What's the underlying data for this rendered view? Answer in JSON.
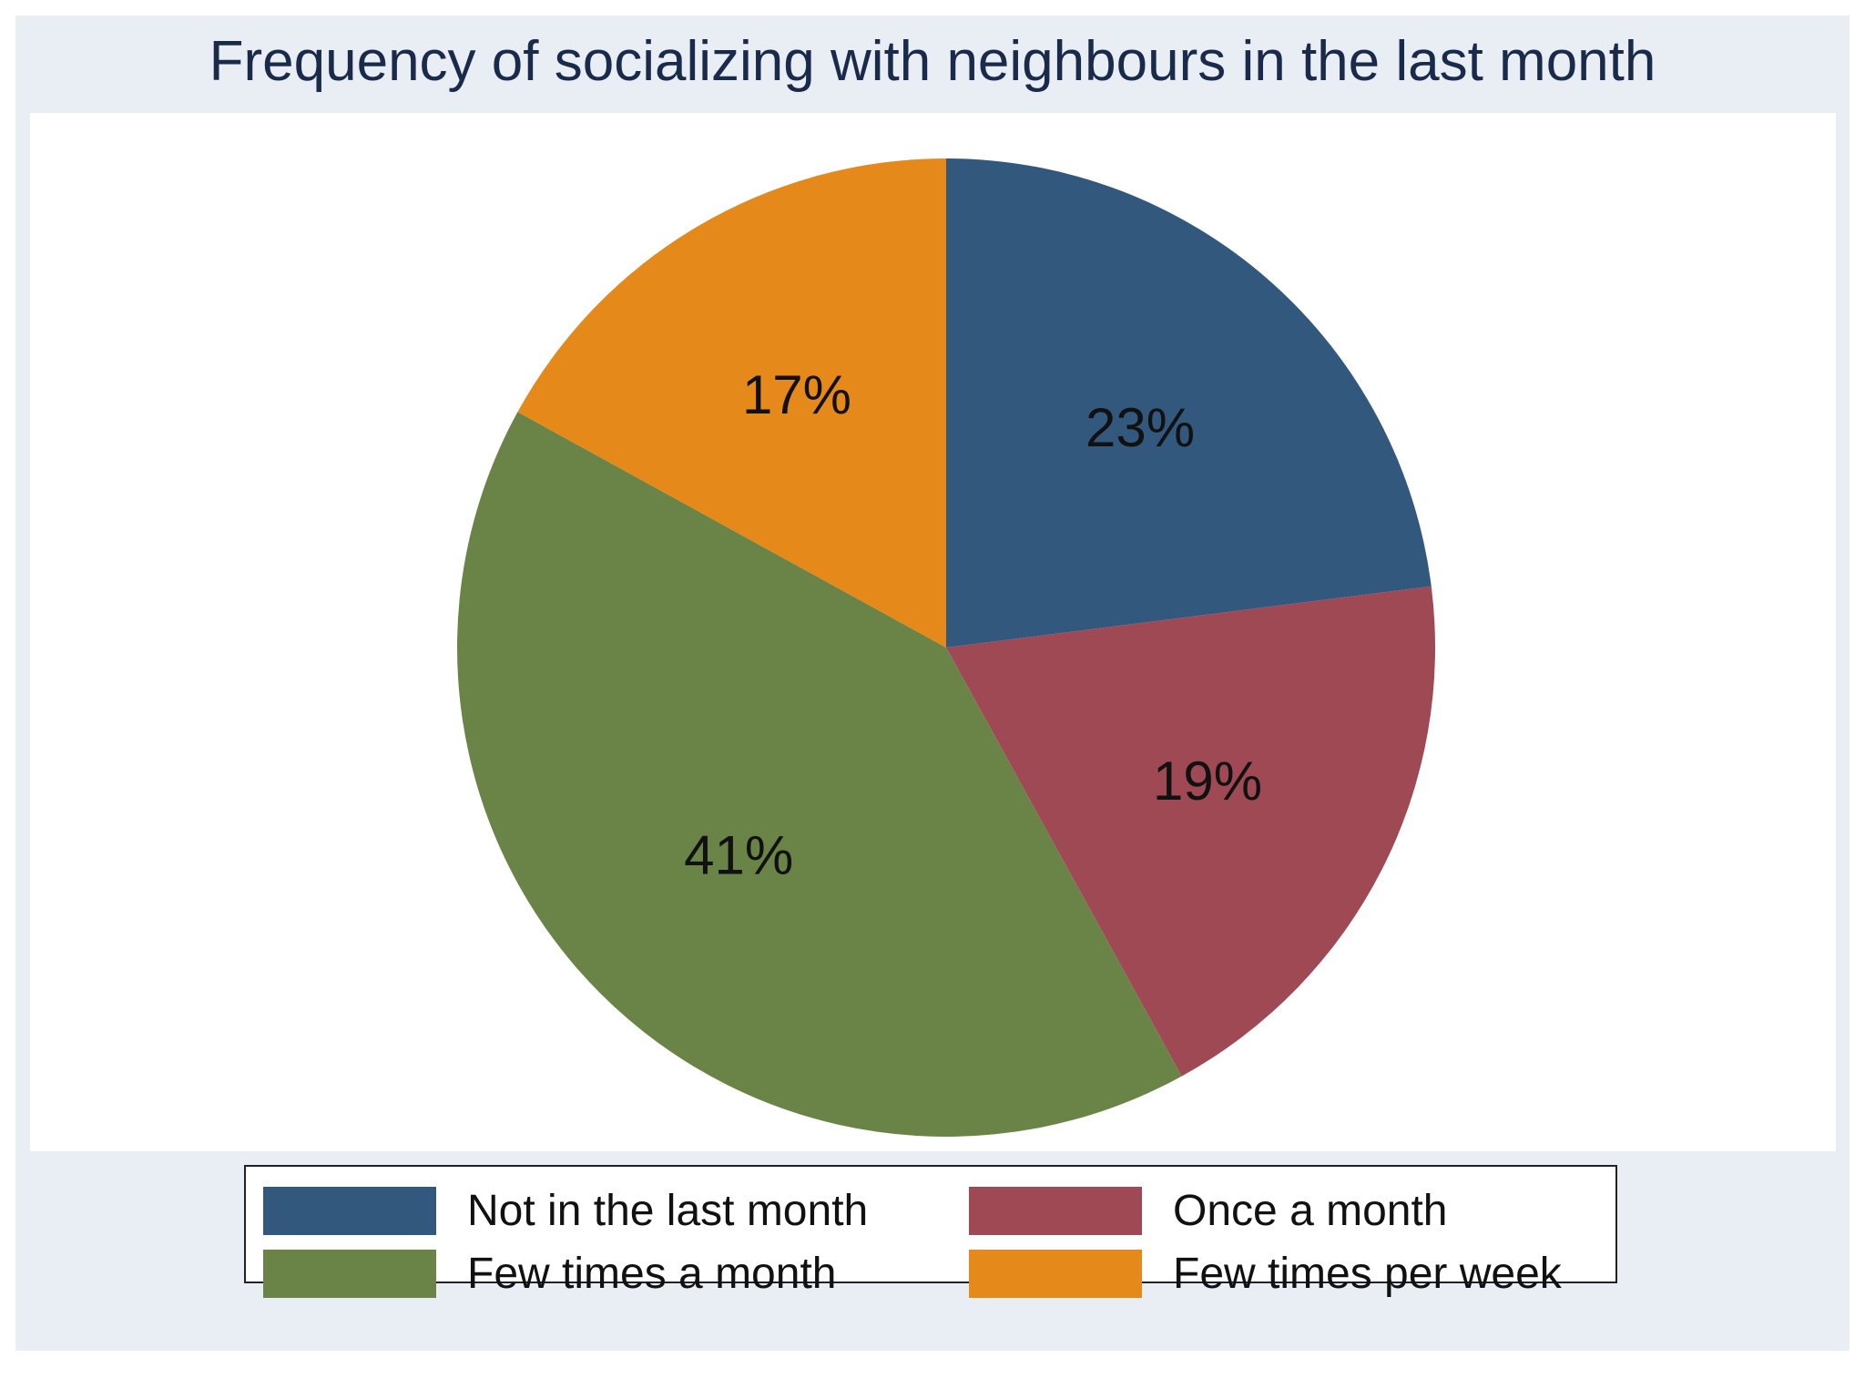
{
  "chart_data": {
    "type": "pie",
    "title": "Frequency of socializing with neighbours in the last month",
    "slices": [
      {
        "label": "Not in the last month",
        "value": 23,
        "value_label": "23%",
        "color": "#33587e"
      },
      {
        "label": "Once a month",
        "value": 19,
        "value_label": "19%",
        "color": "#9e4954"
      },
      {
        "label": "Few times a month",
        "value": 41,
        "value_label": "41%",
        "color": "#6a8447"
      },
      {
        "label": "Few times per week",
        "value": 17,
        "value_label": "17%",
        "color": "#e5891a"
      }
    ],
    "start_angle": "12 o'clock",
    "direction": "clockwise",
    "legend": {
      "position": "bottom",
      "columns": 2,
      "entries": [
        "Not in the last month",
        "Once a month",
        "Few times a month",
        "Few times per week"
      ]
    },
    "background_color": "#e9eef5",
    "plot_background_color": "#ffffff",
    "title_color": "#1a2a4a"
  }
}
